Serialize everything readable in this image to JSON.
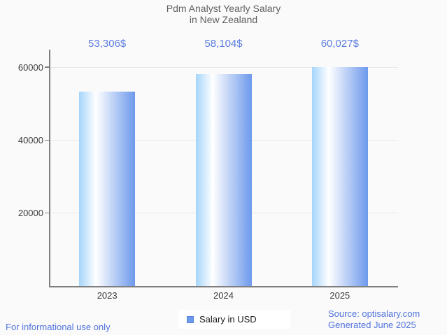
{
  "title_lines": [
    "Pdm Analyst Yearly Salary",
    "in New Zealand"
  ],
  "chart_data": {
    "type": "bar",
    "title": "Pdm Analyst Yearly Salary in New Zealand",
    "categories": [
      "2023",
      "2024",
      "2025"
    ],
    "values": [
      53306,
      58104,
      60027
    ],
    "value_labels": [
      "53,306$",
      "58,104$",
      "60,027$"
    ],
    "series": [
      {
        "name": "Salary in USD",
        "values": [
          53306,
          58104,
          60027
        ]
      }
    ],
    "xlabel": "",
    "ylabel": "",
    "ylim": [
      0,
      64800
    ],
    "yticks": [
      20000,
      40000,
      60000
    ],
    "ytick_labels": [
      "20000",
      "40000",
      "60000"
    ],
    "grid": true,
    "legend_position": "bottom"
  },
  "legend": {
    "label": "Salary in USD",
    "swatch": "blue-square-icon"
  },
  "footer": {
    "disclaimer": "For informational use only",
    "source": "Source: optisalary.com",
    "generated": "Generated June 2025"
  },
  "colors": {
    "accent_blue": "#5b7de0",
    "link_blue": "#5274dd",
    "title_gray": "#616161",
    "axis_gray": "#7f7f7f",
    "grid_gray": "#e9e9e9",
    "text_dark": "#3c3c3c",
    "bar_gradient_left": "#a5d5fb",
    "bar_gradient_mid": "#ffffff",
    "bar_gradient_right": "#6d99ec",
    "legend_swatch": "#6d9bea",
    "legend_swatch_border": "#5585e0",
    "background": "#fafafa",
    "legend_bg": "#ffffff"
  }
}
